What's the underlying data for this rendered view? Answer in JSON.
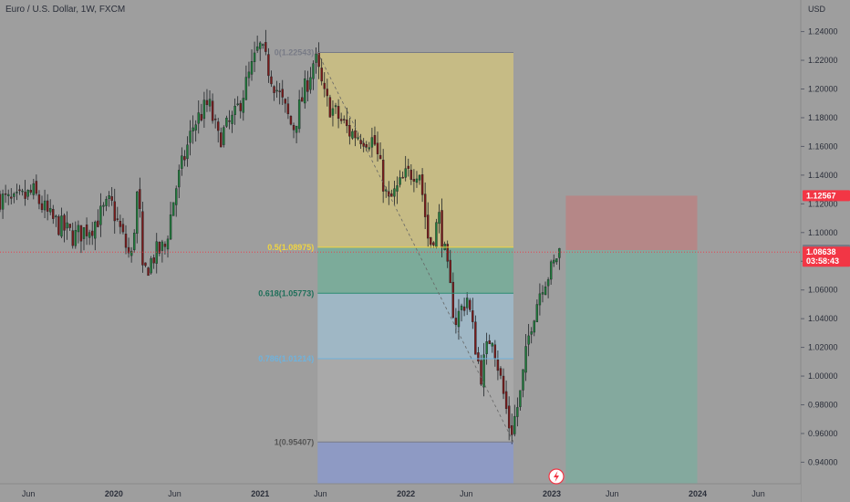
{
  "header": {
    "symbol_title": "Euro / U.S. Dollar, 1W, FXCM"
  },
  "price_axis": {
    "currency": "USD"
  },
  "chart_data": {
    "type": "candlestick",
    "title": "Euro / U.S. Dollar, 1W, FXCM",
    "ylabel": "USD",
    "ylim": [
      0.925,
      1.262
    ],
    "xlim": [
      "2019-03-22",
      "2024-09-15"
    ],
    "y_ticks": [
      0.94,
      0.96,
      0.98,
      1.0,
      1.02,
      1.04,
      1.06,
      1.08,
      1.1,
      1.12,
      1.14,
      1.16,
      1.18,
      1.2,
      1.22,
      1.24
    ],
    "y_tick_labels": [
      "0.94000",
      "0.96000",
      "0.98000",
      "1.00000",
      "1.02000",
      "1.04000",
      "1.06000",
      "1.08000",
      "1.10000",
      "1.12000",
      "1.14000",
      "1.16000",
      "1.18000",
      "1.20000",
      "1.22000",
      "1.24000"
    ],
    "x_ticks": [
      {
        "label": "Jun",
        "date": "2019-06-01",
        "bold": false
      },
      {
        "label": "2020",
        "date": "2020-01-01",
        "bold": true
      },
      {
        "label": "Jun",
        "date": "2020-06-01",
        "bold": false
      },
      {
        "label": "2021",
        "date": "2021-01-01",
        "bold": true
      },
      {
        "label": "Jun",
        "date": "2021-06-01",
        "bold": false
      },
      {
        "label": "2022",
        "date": "2022-01-01",
        "bold": true
      },
      {
        "label": "Jun",
        "date": "2022-06-01",
        "bold": false
      },
      {
        "label": "2023",
        "date": "2023-01-01",
        "bold": true
      },
      {
        "label": "Jun",
        "date": "2023-06-01",
        "bold": false
      },
      {
        "label": "2024",
        "date": "2024-01-01",
        "bold": true
      },
      {
        "label": "Jun",
        "date": "2024-06-01",
        "bold": false
      }
    ],
    "price_path": [
      [
        "2019-03-22",
        1.125
      ],
      [
        "2019-05-01",
        1.12
      ],
      [
        "2019-06-20",
        1.128
      ],
      [
        "2019-08-01",
        1.11
      ],
      [
        "2019-09-30",
        1.097
      ],
      [
        "2019-11-15",
        1.105
      ],
      [
        "2019-12-31",
        1.121
      ],
      [
        "2020-02-20",
        1.08
      ],
      [
        "2020-03-09",
        1.135
      ],
      [
        "2020-03-20",
        1.07
      ],
      [
        "2020-04-20",
        1.085
      ],
      [
        "2020-05-15",
        1.09
      ],
      [
        "2020-06-10",
        1.13
      ],
      [
        "2020-07-25",
        1.175
      ],
      [
        "2020-09-01",
        1.19
      ],
      [
        "2020-09-25",
        1.165
      ],
      [
        "2020-11-05",
        1.18
      ],
      [
        "2020-12-25",
        1.22
      ],
      [
        "2021-01-06",
        1.23
      ],
      [
        "2021-03-31",
        1.172
      ],
      [
        "2021-05-25",
        1.222
      ],
      [
        "2021-06-20",
        1.192
      ],
      [
        "2021-08-20",
        1.17
      ],
      [
        "2021-10-20",
        1.164
      ],
      [
        "2021-11-24",
        1.12
      ],
      [
        "2022-01-10",
        1.14
      ],
      [
        "2022-02-10",
        1.145
      ],
      [
        "2022-03-07",
        1.09
      ],
      [
        "2022-04-01",
        1.11
      ],
      [
        "2022-05-11",
        1.038
      ],
      [
        "2022-06-10",
        1.055
      ],
      [
        "2022-07-14",
        1.0
      ],
      [
        "2022-08-10",
        1.032
      ],
      [
        "2022-09-27",
        0.96
      ],
      [
        "2022-10-20",
        0.985
      ],
      [
        "2022-11-15",
        1.035
      ],
      [
        "2022-12-15",
        1.065
      ],
      [
        "2023-01-10",
        1.075
      ],
      [
        "2023-01-24",
        1.087
      ]
    ],
    "candles_seed": 7,
    "fibonacci": {
      "start": "2021-05-25",
      "end": "2022-09-27",
      "high": 1.22543,
      "low": 0.95407,
      "levels": [
        {
          "ratio": 0,
          "label": "0(1.22543)",
          "price": 1.22543,
          "line_color": "#787b86",
          "fill": "#c6bb85",
          "text_color": "#787b86"
        },
        {
          "ratio": 0.5,
          "label": "0.5(1.08975)",
          "price": 1.08975,
          "line_color": "#f0d542",
          "fill": "#7cab9a",
          "text_color": "#f0d542"
        },
        {
          "ratio": 0.618,
          "label": "0.618(1.05773)",
          "price": 1.05773,
          "line_color": "#2a8b70",
          "fill": "#9fb7c5",
          "text_color": "#1f6f5a"
        },
        {
          "ratio": 0.786,
          "label": "0.786(1.01214)",
          "price": 1.01214,
          "line_color": "#6fb2dc",
          "fill": "#a9a9a9",
          "text_color": "#6fb2dc"
        },
        {
          "ratio": 1,
          "label": "1(0.95407)",
          "price": 0.95407,
          "line_color": "#787b86",
          "fill": "#8e9ac4",
          "text_color": "#555555"
        }
      ]
    },
    "position": {
      "start": "2023-02-05",
      "end": "2023-12-31",
      "entry": 1.08776,
      "stop": 1.12567,
      "target": 0.925,
      "risk_color": "#b58787",
      "reward_color": "#84a99e"
    },
    "current_price_line": 1.08638,
    "price_badges": [
      {
        "price": 1.12567,
        "text": "1.12567",
        "color": "#f23645"
      },
      {
        "price": 1.08776,
        "text": "1.08776",
        "color": "#787b86"
      },
      {
        "price": 1.08638,
        "text": "1.08638",
        "subtext": "03:58:43",
        "color": "#f23645"
      }
    ]
  }
}
